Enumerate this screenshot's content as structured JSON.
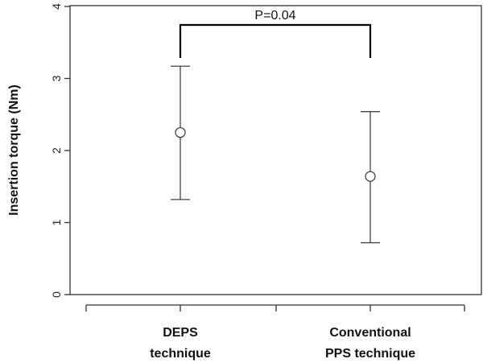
{
  "chart_data": {
    "type": "scatter",
    "categories": [
      "DEPS\ntechnique",
      "Conventional\nPPS technique"
    ],
    "series": [
      {
        "points": [
          {
            "category": "DEPS\ntechnique",
            "mean": 2.25,
            "lower": 1.32,
            "upper": 3.17
          },
          {
            "category": "Conventional\nPPS technique",
            "mean": 1.64,
            "lower": 0.72,
            "upper": 2.54
          }
        ]
      }
    ],
    "ylabel": "Insertion  torque (Nm)",
    "ylim": [
      0,
      4
    ],
    "yticks": [
      0,
      1,
      2,
      3,
      4
    ],
    "annotation": {
      "text": "P=0.04",
      "between": [
        0,
        1
      ]
    },
    "grid": false,
    "colors": {
      "axis": "#333333",
      "marks": "#444444",
      "bracket": "#000000"
    }
  }
}
